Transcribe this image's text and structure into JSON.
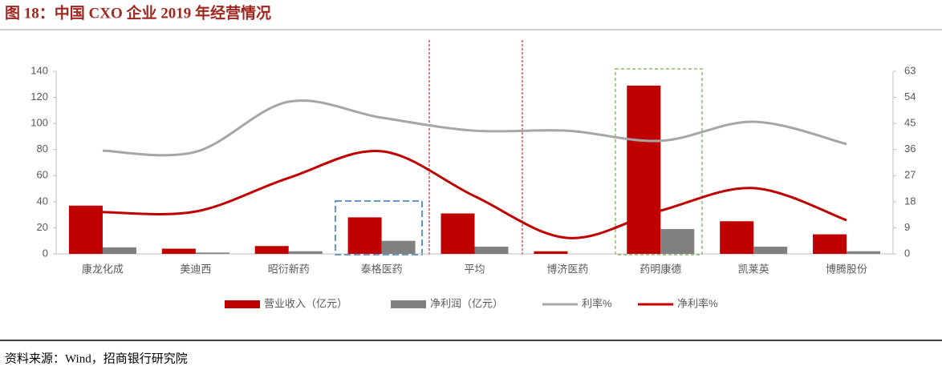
{
  "chart_data": {
    "type": "bar",
    "title": "图 18：中国 CXO 企业 2019 年经营情况",
    "source": "资料来源：Wind，招商银行研究院",
    "categories": [
      "康龙化成",
      "美迪西",
      "昭衍新药",
      "泰格医药",
      "平均",
      "博济医药",
      "药明康德",
      "凯莱英",
      "博腾股份"
    ],
    "series": [
      {
        "name": "营业收入（亿元）",
        "type": "bar",
        "color": "#c00000",
        "values": [
          37,
          4,
          6,
          28,
          31,
          2,
          129,
          25,
          15
        ]
      },
      {
        "name": "净利润（亿元）",
        "type": "bar",
        "color": "#808080",
        "values": [
          5,
          1,
          2,
          10,
          5.5,
          0,
          19,
          5.5,
          2
        ]
      },
      {
        "name": "利率%",
        "type": "line",
        "axis": "y2",
        "color": "#a6a6a6",
        "values": [
          35.6,
          35.2,
          52.5,
          47,
          42.5,
          42.5,
          39,
          45.6,
          37.9
        ]
      },
      {
        "name": "净利率%",
        "type": "line",
        "axis": "y2",
        "color": "#c00000",
        "values": [
          14.4,
          14.6,
          26.2,
          35.4,
          19.9,
          5.5,
          14.9,
          22.7,
          11.6
        ]
      }
    ],
    "ylim": [
      0,
      140
    ],
    "yticks": [
      0,
      20,
      40,
      60,
      80,
      100,
      120,
      140
    ],
    "y2lim": [
      0,
      63
    ],
    "y2ticks": [
      0,
      9,
      18,
      27,
      36,
      45,
      54,
      63
    ],
    "legend": "bottom"
  }
}
